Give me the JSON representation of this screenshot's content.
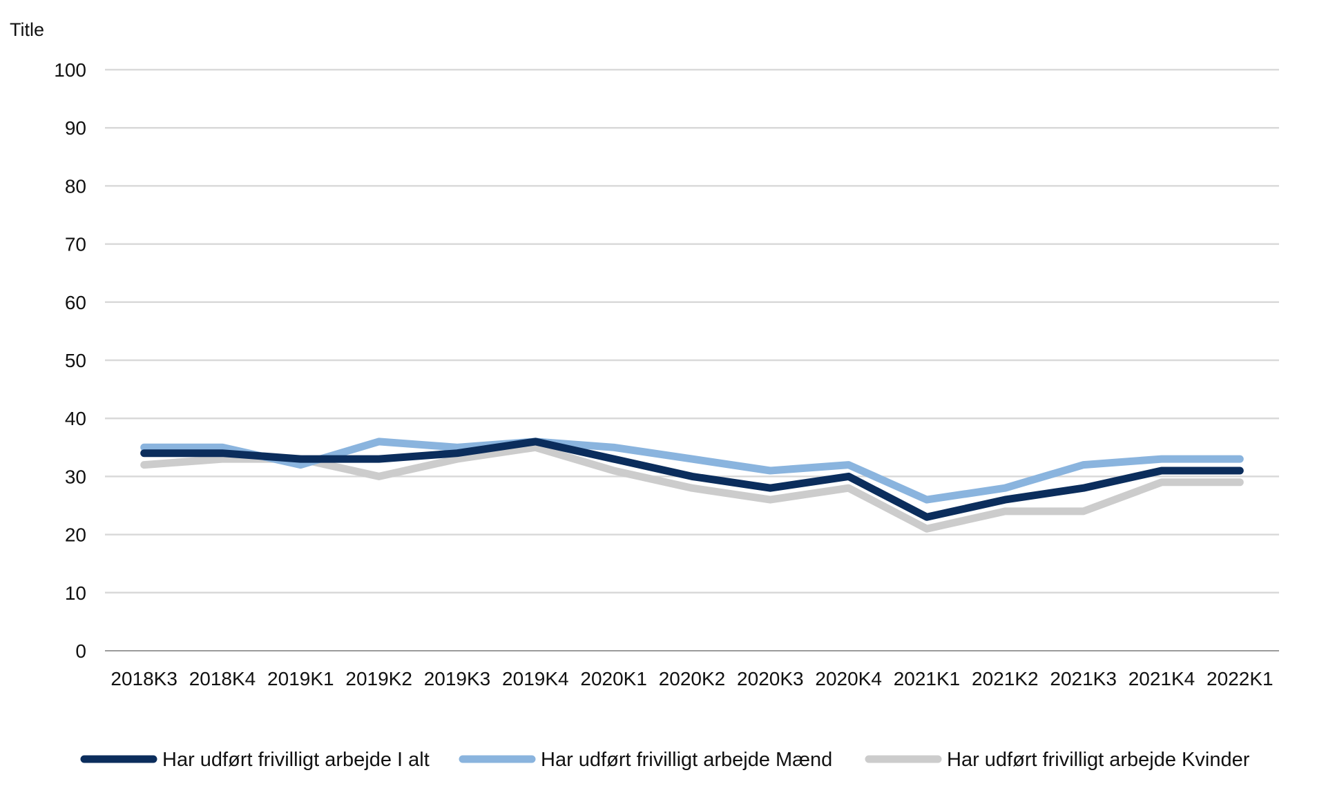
{
  "chart_data": {
    "type": "line",
    "title": "",
    "ylabel": "Title",
    "xlabel": "",
    "ylim": [
      0,
      100
    ],
    "yticks": [
      0,
      10,
      20,
      30,
      40,
      50,
      60,
      70,
      80,
      90,
      100
    ],
    "grid": true,
    "legend_position": "bottom",
    "categories": [
      "2018K3",
      "2018K4",
      "2019K1",
      "2019K2",
      "2019K3",
      "2019K4",
      "2020K1",
      "2020K2",
      "2020K3",
      "2020K4",
      "2021K1",
      "2021K2",
      "2021K3",
      "2021K4",
      "2022K1"
    ],
    "series": [
      {
        "name": "Har udført frivilligt arbejde I alt",
        "color": "#0b2d5c",
        "values": [
          34,
          34,
          33,
          33,
          34,
          36,
          33,
          30,
          28,
          30,
          23,
          26,
          28,
          31,
          31
        ]
      },
      {
        "name": "Har udført frivilligt arbejde Mænd",
        "color": "#8ab4de",
        "values": [
          35,
          35,
          32,
          36,
          35,
          36,
          35,
          33,
          31,
          32,
          26,
          28,
          32,
          33,
          33
        ]
      },
      {
        "name": "Har udført frivilligt arbejde Kvinder",
        "color": "#cccccc",
        "values": [
          32,
          33,
          33,
          30,
          33,
          35,
          31,
          28,
          26,
          28,
          21,
          24,
          24,
          29,
          29
        ]
      }
    ]
  }
}
